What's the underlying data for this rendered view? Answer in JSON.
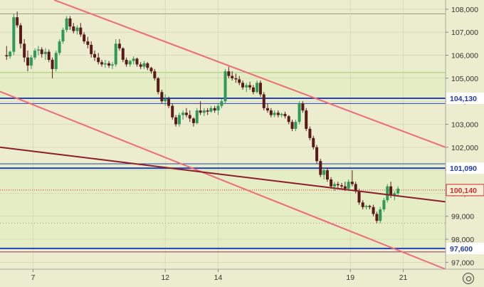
{
  "chart_data": {
    "type": "candlestick",
    "y_ticks": [
      "108,000",
      "107,000",
      "106,000",
      "105,000",
      "104,000",
      "103,000",
      "102,000",
      "101,000",
      "100,000",
      "99,000",
      "98,000",
      "97,000"
    ],
    "x_ticks": [
      {
        "label": "7",
        "day": 7
      },
      {
        "label": "12",
        "day": 12
      },
      {
        "label": "14",
        "day": 14
      },
      {
        "label": "19",
        "day": 19
      },
      {
        "label": "21",
        "day": 21
      }
    ],
    "ylim": [
      96700,
      108400
    ],
    "xlim": [
      5.75,
      22.6
    ],
    "grid": true,
    "candles": [
      [
        6.0,
        106000,
        106400,
        105800,
        105950
      ],
      [
        6.13,
        105950,
        106200,
        105850,
        106150
      ],
      [
        6.27,
        106150,
        107800,
        106000,
        107650
      ],
      [
        6.4,
        107650,
        107900,
        107200,
        107300
      ],
      [
        6.53,
        107300,
        107400,
        106300,
        106500
      ],
      [
        6.67,
        106500,
        106700,
        105700,
        105900
      ],
      [
        6.8,
        105900,
        106200,
        105300,
        105550
      ],
      [
        6.93,
        105550,
        106000,
        105400,
        105900
      ],
      [
        7.07,
        105900,
        106300,
        105800,
        106200
      ],
      [
        7.2,
        106200,
        106400,
        106000,
        106250
      ],
      [
        7.33,
        106250,
        106350,
        105900,
        106050
      ],
      [
        7.47,
        106050,
        106300,
        105800,
        106150
      ],
      [
        7.6,
        106150,
        106250,
        105700,
        105800
      ],
      [
        7.73,
        105800,
        105900,
        105000,
        105400
      ],
      [
        7.87,
        105400,
        106200,
        105300,
        106100
      ],
      [
        8.0,
        106100,
        106700,
        106000,
        106600
      ],
      [
        8.13,
        106600,
        107200,
        106500,
        107100
      ],
      [
        8.27,
        107100,
        107700,
        107000,
        107600
      ],
      [
        8.4,
        107600,
        107700,
        107100,
        107250
      ],
      [
        8.53,
        107250,
        107400,
        106950,
        107050
      ],
      [
        8.67,
        107050,
        107300,
        106900,
        107200
      ],
      [
        8.8,
        107200,
        107400,
        106800,
        106900
      ],
      [
        8.93,
        106900,
        107000,
        106500,
        106600
      ],
      [
        9.07,
        106600,
        106800,
        106300,
        106450
      ],
      [
        9.2,
        106450,
        106600,
        105900,
        106050
      ],
      [
        9.33,
        106050,
        106200,
        105750,
        105900
      ],
      [
        9.47,
        105900,
        106100,
        105600,
        105700
      ],
      [
        9.6,
        105700,
        105800,
        105500,
        105600
      ],
      [
        9.73,
        105600,
        105800,
        105450,
        105650
      ],
      [
        9.87,
        105650,
        105750,
        105450,
        105550
      ],
      [
        10.0,
        105550,
        105700,
        105400,
        105600
      ],
      [
        10.13,
        105600,
        106700,
        105500,
        106500
      ],
      [
        10.27,
        106500,
        106700,
        106200,
        106300
      ],
      [
        10.4,
        106300,
        106350,
        105700,
        105800
      ],
      [
        10.53,
        105800,
        105900,
        105500,
        105600
      ],
      [
        10.67,
        105600,
        105800,
        105500,
        105750
      ],
      [
        10.8,
        105750,
        105950,
        105600,
        105850
      ],
      [
        10.93,
        105850,
        105900,
        105500,
        105600
      ],
      [
        11.07,
        105600,
        105700,
        105400,
        105500
      ],
      [
        11.2,
        105500,
        105750,
        105400,
        105650
      ],
      [
        11.33,
        105650,
        105700,
        105350,
        105450
      ],
      [
        11.47,
        105450,
        105500,
        105200,
        105300
      ],
      [
        11.6,
        105300,
        105400,
        104900,
        105000
      ],
      [
        11.73,
        105000,
        105050,
        104300,
        104400
      ],
      [
        11.87,
        104400,
        104500,
        103900,
        104000
      ],
      [
        12.0,
        104000,
        104300,
        103800,
        104100
      ],
      [
        12.13,
        104100,
        104200,
        103700,
        103800
      ],
      [
        12.27,
        103800,
        103900,
        103200,
        103300
      ],
      [
        12.4,
        103300,
        103400,
        102900,
        103000
      ],
      [
        12.53,
        103000,
        103500,
        102900,
        103400
      ],
      [
        12.67,
        103400,
        103600,
        103200,
        103500
      ],
      [
        12.8,
        103500,
        103700,
        103300,
        103400
      ],
      [
        12.93,
        103400,
        103600,
        103100,
        103250
      ],
      [
        13.07,
        103250,
        103300,
        102900,
        103050
      ],
      [
        13.2,
        103050,
        103700,
        103000,
        103600
      ],
      [
        13.33,
        103600,
        104000,
        103400,
        103500
      ],
      [
        13.47,
        103500,
        103700,
        103350,
        103600
      ],
      [
        13.6,
        103600,
        103700,
        103400,
        103550
      ],
      [
        13.73,
        103550,
        103800,
        103500,
        103700
      ],
      [
        13.87,
        103700,
        103800,
        103500,
        103600
      ],
      [
        14.0,
        103600,
        103900,
        103400,
        103800
      ],
      [
        14.13,
        103800,
        104100,
        103700,
        104000
      ],
      [
        14.27,
        104000,
        105400,
        103900,
        105300
      ],
      [
        14.4,
        105300,
        105500,
        105000,
        105100
      ],
      [
        14.53,
        105100,
        105300,
        104900,
        105000
      ],
      [
        14.67,
        105000,
        105200,
        104800,
        104950
      ],
      [
        14.8,
        104950,
        105100,
        104700,
        104800
      ],
      [
        14.93,
        104800,
        104900,
        104500,
        104600
      ],
      [
        15.07,
        104600,
        104800,
        104400,
        104700
      ],
      [
        15.2,
        104700,
        104850,
        104500,
        104600
      ],
      [
        15.33,
        104600,
        104700,
        104300,
        104400
      ],
      [
        15.47,
        104400,
        104900,
        104350,
        104800
      ],
      [
        15.6,
        104800,
        104900,
        104200,
        104300
      ],
      [
        15.73,
        104300,
        104400,
        103600,
        103700
      ],
      [
        15.87,
        103700,
        103900,
        103500,
        103600
      ],
      [
        16.0,
        103600,
        103700,
        103300,
        103400
      ],
      [
        16.13,
        103400,
        103600,
        103300,
        103500
      ],
      [
        16.27,
        103500,
        103600,
        103300,
        103400
      ],
      [
        16.4,
        103400,
        103500,
        103300,
        103450
      ],
      [
        16.53,
        103450,
        103550,
        103250,
        103350
      ],
      [
        16.67,
        103350,
        103400,
        103000,
        103100
      ],
      [
        16.8,
        103100,
        103200,
        102700,
        102800
      ],
      [
        16.93,
        102800,
        103200,
        102700,
        103100
      ],
      [
        17.07,
        103100,
        104000,
        103000,
        103900
      ],
      [
        17.2,
        103900,
        104000,
        103500,
        103600
      ],
      [
        17.33,
        103600,
        103700,
        102700,
        102800
      ],
      [
        17.47,
        102800,
        102900,
        102300,
        102400
      ],
      [
        17.6,
        102400,
        102500,
        101900,
        102000
      ],
      [
        17.73,
        102000,
        102100,
        101300,
        101400
      ],
      [
        17.87,
        101400,
        101500,
        100700,
        100800
      ],
      [
        18.0,
        100800,
        101100,
        100600,
        101000
      ],
      [
        18.13,
        101000,
        101100,
        100500,
        100600
      ],
      [
        18.27,
        100600,
        100700,
        100200,
        100300
      ],
      [
        18.4,
        100300,
        100500,
        100100,
        100400
      ],
      [
        18.53,
        100400,
        100500,
        100200,
        100350
      ],
      [
        18.67,
        100350,
        100450,
        100200,
        100300
      ],
      [
        18.8,
        100300,
        100500,
        100100,
        100200
      ],
      [
        18.93,
        100200,
        100600,
        100100,
        100500
      ],
      [
        19.07,
        100500,
        101000,
        100300,
        100400
      ],
      [
        19.2,
        100400,
        100500,
        100000,
        100100
      ],
      [
        19.33,
        100100,
        100200,
        99500,
        99600
      ],
      [
        19.47,
        99600,
        99700,
        99300,
        99400
      ],
      [
        19.6,
        99400,
        99500,
        99300,
        99450
      ],
      [
        19.73,
        99450,
        99500,
        99300,
        99400
      ],
      [
        19.87,
        99400,
        99500,
        99000,
        99100
      ],
      [
        20.0,
        99100,
        99200,
        98700,
        98800
      ],
      [
        20.13,
        98800,
        99400,
        98700,
        99300
      ],
      [
        20.27,
        99300,
        99800,
        99200,
        99700
      ],
      [
        20.4,
        99700,
        100400,
        99600,
        100300
      ],
      [
        20.53,
        100300,
        100500,
        99800,
        99900
      ],
      [
        20.67,
        99900,
        100100,
        99700,
        100000
      ],
      [
        20.8,
        100000,
        100300,
        99900,
        100200
      ]
    ],
    "levels": [
      {
        "label": "104,130",
        "value": 104130,
        "tag": true,
        "color": "#2342b8",
        "width": 2
      },
      {
        "label": "",
        "value": 103900,
        "tag": false,
        "color": "#2342b8",
        "width": 1
      },
      {
        "label": "101,090",
        "value": 101090,
        "tag": true,
        "color": "#2342b8",
        "width": 2
      },
      {
        "label": "",
        "value": 101280,
        "tag": false,
        "color": "#2342b8",
        "width": 1
      },
      {
        "label": "100,140",
        "value": 100140,
        "tag": true,
        "color": "#d42a2a",
        "width": 1,
        "dotted": true
      },
      {
        "label": "97,600",
        "value": 97600,
        "tag": true,
        "color": "#2342b8",
        "width": 2
      },
      {
        "label": "",
        "value": 97450,
        "tag": false,
        "color": "#8a3a5a",
        "width": 1
      }
    ],
    "trendlines": [
      {
        "name": "upper-channel",
        "color": "#f06a7a",
        "points": [
          [
            7.8,
            108400
          ],
          [
            22.6,
            102000
          ]
        ]
      },
      {
        "name": "lower-channel",
        "color": "#f06a7a",
        "points": [
          [
            5.75,
            104420
          ],
          [
            22.6,
            96700
          ]
        ]
      },
      {
        "name": "support-line",
        "color": "#8b1e2a",
        "points": [
          [
            5.75,
            102000
          ],
          [
            22.6,
            99630
          ]
        ]
      }
    ],
    "colors": {
      "background": "#ececcf",
      "band": "#e4edc3",
      "bull": "#2f9a57",
      "bear": "#5a1a1a",
      "grid": "#cfcfb0"
    }
  }
}
